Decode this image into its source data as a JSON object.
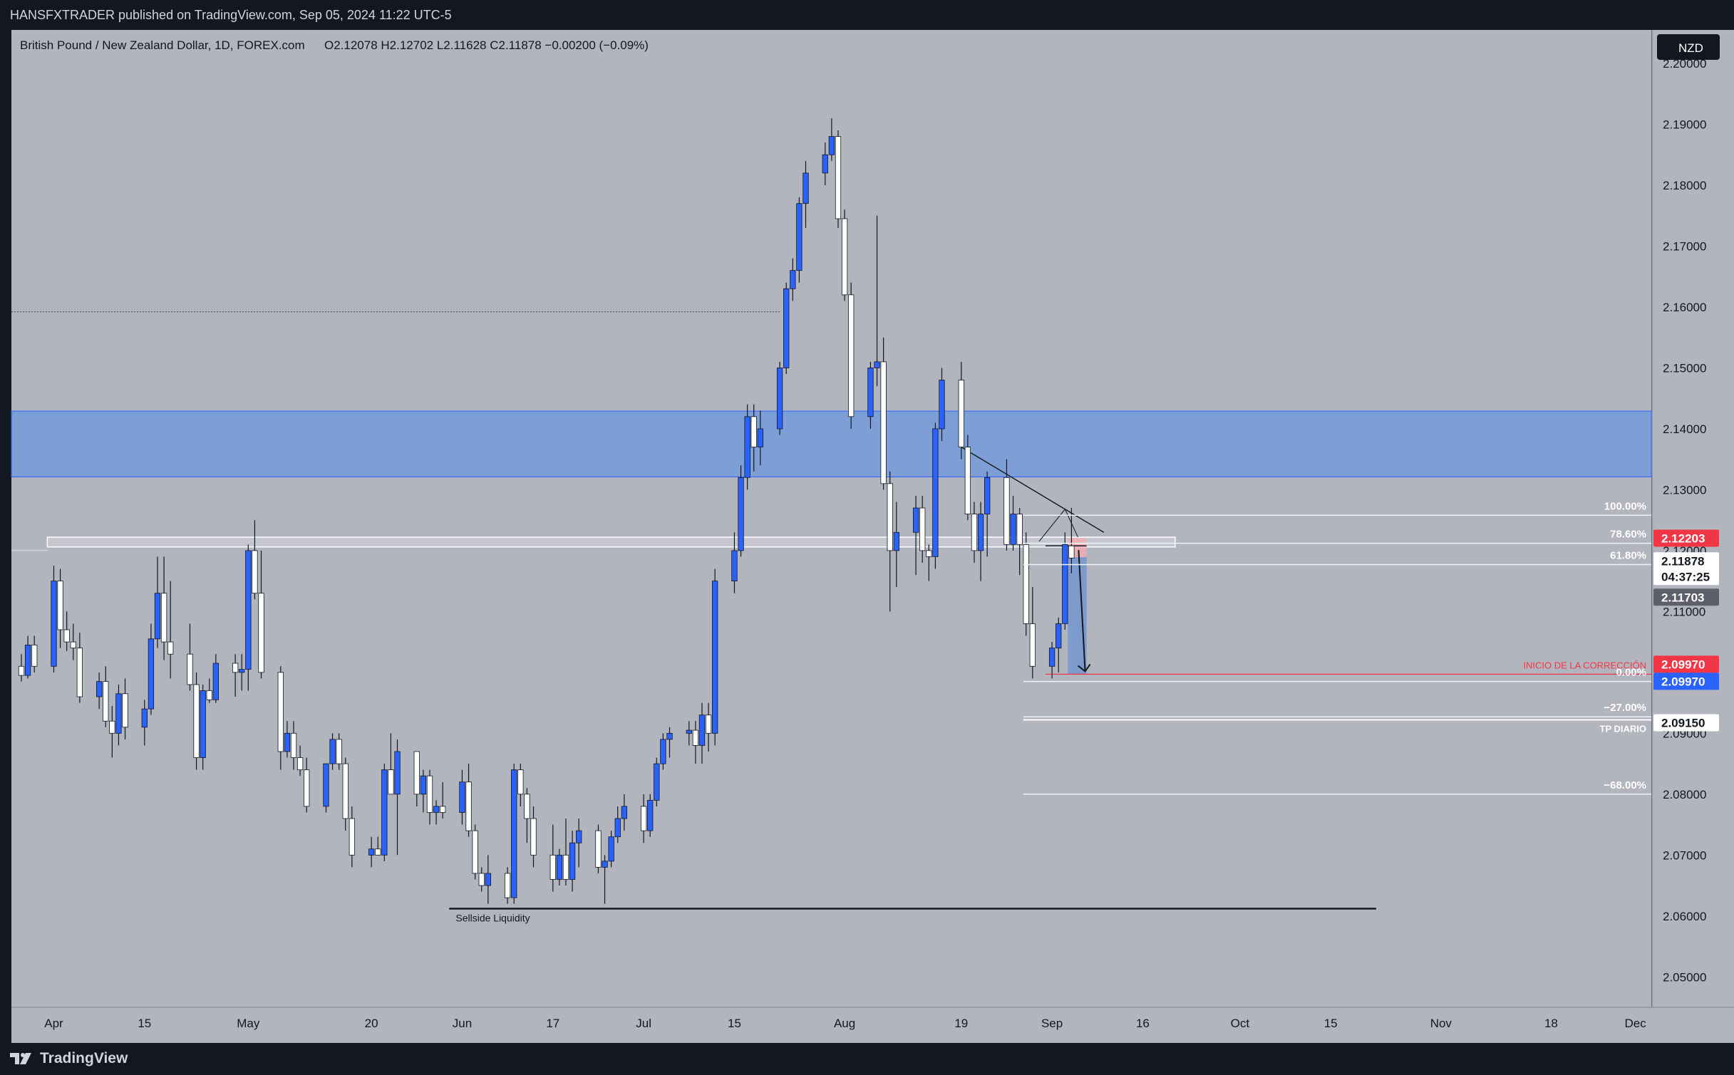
{
  "header": {
    "published": "HANSFXTRADER published on TradingView.com, Sep 05, 2024 11:22 UTC-5"
  },
  "legend": {
    "symbol": "British Pound / New Zealand Dollar, 1D, FOREX.com",
    "ohlc": "O2.12078  H2.12702  L2.11628  C2.11878  −0.00200 (−0.09%)"
  },
  "currency_button": "NZD",
  "footer": {
    "brand": "TradingView"
  },
  "colors": {
    "chart_bg": "#b2b5be",
    "bull_candle": "#2962ff",
    "bear_candle": "#ffffff",
    "zone_fill": "#7e9fd6",
    "sell_zone": "#f7a9b0",
    "target_zone": "#6f93cf",
    "label_red": "#f23645",
    "label_blue": "#2962ff",
    "label_gray": "#5d606b"
  },
  "chart_data": {
    "type": "candlestick",
    "title": "British Pound / New Zealand Dollar, 1D, FOREX.com",
    "ylim": [
      2.045,
      2.2055
    ],
    "y_ticks": [
      "2.20000",
      "2.19000",
      "2.18000",
      "2.17000",
      "2.16000",
      "2.15000",
      "2.14000",
      "2.13000",
      "2.12000",
      "2.11000",
      "2.10000",
      "2.09000",
      "2.08000",
      "2.07000",
      "2.06000",
      "2.05000"
    ],
    "x_tick_labels": [
      {
        "label": "Apr",
        "date": "2024-04-01"
      },
      {
        "label": "15",
        "date": "2024-04-15"
      },
      {
        "label": "May",
        "date": "2024-05-01"
      },
      {
        "label": "20",
        "date": "2024-05-20"
      },
      {
        "label": "Jun",
        "date": "2024-06-03"
      },
      {
        "label": "17",
        "date": "2024-06-17"
      },
      {
        "label": "Jul",
        "date": "2024-07-01"
      },
      {
        "label": "15",
        "date": "2024-07-15"
      },
      {
        "label": "Aug",
        "date": "2024-08-01"
      },
      {
        "label": "19",
        "date": "2024-08-19"
      },
      {
        "label": "Sep",
        "date": "2024-09-02"
      },
      {
        "label": "16",
        "date": "2024-09-16"
      },
      {
        "label": "Oct",
        "date": "2024-10-01"
      },
      {
        "label": "15",
        "date": "2024-10-15"
      },
      {
        "label": "Nov",
        "date": "2024-11-01"
      },
      {
        "label": "18",
        "date": "2024-11-18"
      },
      {
        "label": "Dec",
        "date": "2024-12-01"
      }
    ],
    "candles": [
      [
        "2024-03-27",
        2.101,
        2.103,
        2.0985,
        2.0995
      ],
      [
        "2024-03-28",
        2.0995,
        2.106,
        2.099,
        2.1045
      ],
      [
        "2024-03-29",
        2.1045,
        2.106,
        2.1,
        2.101
      ],
      [
        "2024-04-01",
        2.101,
        2.1175,
        2.1,
        2.115
      ],
      [
        "2024-04-02",
        2.115,
        2.117,
        2.104,
        2.107
      ],
      [
        "2024-04-03",
        2.107,
        2.11,
        2.1035,
        2.105
      ],
      [
        "2024-04-04",
        2.105,
        2.108,
        2.102,
        2.104
      ],
      [
        "2024-04-05",
        2.104,
        2.1065,
        2.095,
        2.096
      ],
      [
        "2024-04-08",
        2.096,
        2.1,
        2.094,
        2.0985
      ],
      [
        "2024-04-09",
        2.0985,
        2.101,
        2.091,
        2.092
      ],
      [
        "2024-04-10",
        2.092,
        2.0945,
        2.086,
        2.09
      ],
      [
        "2024-04-11",
        2.09,
        2.098,
        2.088,
        2.0965
      ],
      [
        "2024-04-12",
        2.0965,
        2.099,
        2.089,
        2.091
      ],
      [
        "2024-04-15",
        2.091,
        2.0955,
        2.088,
        2.094
      ],
      [
        "2024-04-16",
        2.094,
        2.108,
        2.093,
        2.1055
      ],
      [
        "2024-04-17",
        2.1055,
        2.119,
        2.104,
        2.113
      ],
      [
        "2024-04-18",
        2.113,
        2.119,
        2.102,
        2.105
      ],
      [
        "2024-04-19",
        2.105,
        2.115,
        2.099,
        2.103
      ],
      [
        "2024-04-22",
        2.103,
        2.108,
        2.097,
        2.098
      ],
      [
        "2024-04-23",
        2.098,
        2.1,
        2.084,
        2.086
      ],
      [
        "2024-04-24",
        2.086,
        2.098,
        2.084,
        2.097
      ],
      [
        "2024-04-25",
        2.097,
        2.099,
        2.095,
        2.0955
      ],
      [
        "2024-04-26",
        2.0955,
        2.103,
        2.095,
        2.1015
      ],
      [
        "2024-04-29",
        2.1015,
        2.103,
        2.096,
        2.1
      ],
      [
        "2024-04-30",
        2.1,
        2.103,
        2.097,
        2.1005
      ],
      [
        "2024-05-01",
        2.1005,
        2.121,
        2.097,
        2.12
      ],
      [
        "2024-05-02",
        2.12,
        2.125,
        2.112,
        2.113
      ],
      [
        "2024-05-03",
        2.113,
        2.12,
        2.099,
        2.1
      ],
      [
        "2024-05-06",
        2.1,
        2.101,
        2.084,
        2.087
      ],
      [
        "2024-05-07",
        2.087,
        2.092,
        2.086,
        2.09
      ],
      [
        "2024-05-08",
        2.09,
        2.092,
        2.084,
        2.086
      ],
      [
        "2024-05-09",
        2.086,
        2.088,
        2.083,
        2.084
      ],
      [
        "2024-05-10",
        2.084,
        2.086,
        2.077,
        2.078
      ],
      [
        "2024-05-13",
        2.078,
        2.084,
        2.077,
        2.085
      ],
      [
        "2024-05-14",
        2.085,
        2.09,
        2.084,
        2.089
      ],
      [
        "2024-05-15",
        2.089,
        2.09,
        2.084,
        2.085
      ],
      [
        "2024-05-16",
        2.085,
        2.086,
        2.074,
        2.076
      ],
      [
        "2024-05-17",
        2.076,
        2.078,
        2.068,
        2.07
      ],
      [
        "2024-05-20",
        2.07,
        2.073,
        2.068,
        2.071
      ],
      [
        "2024-05-21",
        2.071,
        2.073,
        2.07,
        2.07
      ],
      [
        "2024-05-22",
        2.07,
        2.085,
        2.069,
        2.084
      ],
      [
        "2024-05-23",
        2.084,
        2.09,
        2.08,
        2.08
      ],
      [
        "2024-05-24",
        2.08,
        2.089,
        2.07,
        2.087
      ],
      [
        "2024-05-27",
        2.087,
        2.087,
        2.078,
        2.08
      ],
      [
        "2024-05-28",
        2.08,
        2.084,
        2.077,
        2.083
      ],
      [
        "2024-05-29",
        2.083,
        2.084,
        2.075,
        2.077
      ],
      [
        "2024-05-30",
        2.077,
        2.079,
        2.075,
        2.078
      ],
      [
        "2024-05-31",
        2.078,
        2.082,
        2.076,
        2.077
      ],
      [
        "2024-06-03",
        2.077,
        2.084,
        2.075,
        2.082
      ],
      [
        "2024-06-04",
        2.082,
        2.085,
        2.073,
        2.074
      ],
      [
        "2024-06-05",
        2.074,
        2.075,
        2.066,
        2.067
      ],
      [
        "2024-06-06",
        2.067,
        2.068,
        2.064,
        2.065
      ],
      [
        "2024-06-07",
        2.065,
        2.07,
        2.062,
        2.067
      ],
      [
        "2024-06-10",
        2.067,
        2.068,
        2.062,
        2.063
      ],
      [
        "2024-06-11",
        2.063,
        2.085,
        2.062,
        2.084
      ],
      [
        "2024-06-12",
        2.084,
        2.085,
        2.078,
        2.08
      ],
      [
        "2024-06-13",
        2.08,
        2.081,
        2.072,
        2.076
      ],
      [
        "2024-06-14",
        2.076,
        2.078,
        2.068,
        2.07
      ],
      [
        "2024-06-17",
        2.07,
        2.075,
        2.064,
        2.066
      ],
      [
        "2024-06-18",
        2.066,
        2.071,
        2.065,
        2.07
      ],
      [
        "2024-06-19",
        2.07,
        2.076,
        2.065,
        2.066
      ],
      [
        "2024-06-20",
        2.066,
        2.074,
        2.064,
        2.072
      ],
      [
        "2024-06-21",
        2.072,
        2.076,
        2.068,
        2.074
      ],
      [
        "2024-06-24",
        2.074,
        2.075,
        2.067,
        2.068
      ],
      [
        "2024-06-25",
        2.068,
        2.07,
        2.062,
        2.069
      ],
      [
        "2024-06-26",
        2.069,
        2.074,
        2.068,
        2.073
      ],
      [
        "2024-06-27",
        2.073,
        2.078,
        2.072,
        2.076
      ],
      [
        "2024-06-28",
        2.076,
        2.08,
        2.074,
        2.078
      ],
      [
        "2024-07-01",
        2.078,
        2.08,
        2.072,
        2.074
      ],
      [
        "2024-07-02",
        2.074,
        2.08,
        2.073,
        2.079
      ],
      [
        "2024-07-03",
        2.079,
        2.086,
        2.078,
        2.085
      ],
      [
        "2024-07-04",
        2.085,
        2.09,
        2.084,
        2.089
      ],
      [
        "2024-07-05",
        2.089,
        2.091,
        2.086,
        2.09
      ],
      [
        "2024-07-08",
        2.09,
        2.092,
        2.088,
        2.0905
      ],
      [
        "2024-07-09",
        2.0905,
        2.092,
        2.085,
        2.088
      ],
      [
        "2024-07-10",
        2.088,
        2.095,
        2.085,
        2.093
      ],
      [
        "2024-07-11",
        2.093,
        2.095,
        2.087,
        2.09
      ],
      [
        "2024-07-12",
        2.09,
        2.117,
        2.088,
        2.115
      ],
      [
        "2024-07-15",
        2.115,
        2.123,
        2.113,
        2.12
      ],
      [
        "2024-07-16",
        2.12,
        2.134,
        2.119,
        2.132
      ],
      [
        "2024-07-17",
        2.132,
        2.144,
        2.13,
        2.142
      ],
      [
        "2024-07-18",
        2.142,
        2.144,
        2.133,
        2.137
      ],
      [
        "2024-07-19",
        2.137,
        2.143,
        2.134,
        2.14
      ],
      [
        "2024-07-22",
        2.14,
        2.151,
        2.139,
        2.15
      ],
      [
        "2024-07-23",
        2.15,
        2.164,
        2.149,
        2.163
      ],
      [
        "2024-07-24",
        2.163,
        2.168,
        2.161,
        2.166
      ],
      [
        "2024-07-25",
        2.166,
        2.178,
        2.164,
        2.177
      ],
      [
        "2024-07-26",
        2.177,
        2.184,
        2.173,
        2.182
      ],
      [
        "2024-07-29",
        2.182,
        2.187,
        2.18,
        2.185
      ],
      [
        "2024-07-30",
        2.185,
        2.191,
        2.184,
        2.188
      ],
      [
        "2024-07-31",
        2.188,
        2.189,
        2.173,
        2.1745
      ],
      [
        "2024-08-01",
        2.1745,
        2.176,
        2.161,
        2.162
      ],
      [
        "2024-08-02",
        2.162,
        2.164,
        2.14,
        2.142
      ],
      [
        "2024-08-05",
        2.142,
        2.151,
        2.14,
        2.15
      ],
      [
        "2024-08-06",
        2.15,
        2.175,
        2.147,
        2.151
      ],
      [
        "2024-08-07",
        2.151,
        2.155,
        2.13,
        2.131
      ],
      [
        "2024-08-08",
        2.131,
        2.133,
        2.11,
        2.12
      ],
      [
        "2024-08-09",
        2.12,
        2.128,
        2.114,
        2.123
      ],
      [
        "2024-08-12",
        2.123,
        2.129,
        2.116,
        2.127
      ],
      [
        "2024-08-13",
        2.127,
        2.129,
        2.118,
        2.12
      ],
      [
        "2024-08-14",
        2.12,
        2.121,
        2.115,
        2.119
      ],
      [
        "2024-08-15",
        2.119,
        2.141,
        2.117,
        2.14
      ],
      [
        "2024-08-16",
        2.14,
        2.15,
        2.138,
        2.148
      ],
      [
        "2024-08-19",
        2.148,
        2.151,
        2.135,
        2.137
      ],
      [
        "2024-08-20",
        2.137,
        2.139,
        2.125,
        2.126
      ],
      [
        "2024-08-21",
        2.126,
        2.128,
        2.118,
        2.12
      ],
      [
        "2024-08-22",
        2.12,
        2.128,
        2.115,
        2.126
      ],
      [
        "2024-08-23",
        2.126,
        2.133,
        2.119,
        2.132
      ],
      [
        "2024-08-26",
        2.132,
        2.135,
        2.12,
        2.121
      ],
      [
        "2024-08-27",
        2.121,
        2.129,
        2.12,
        2.126
      ],
      [
        "2024-08-28",
        2.126,
        2.127,
        2.116,
        2.121
      ],
      [
        "2024-08-29",
        2.121,
        2.123,
        2.106,
        2.108
      ],
      [
        "2024-08-30",
        2.108,
        2.114,
        2.099,
        2.101
      ],
      [
        "2024-09-02",
        2.101,
        2.105,
        2.099,
        2.104
      ],
      [
        "2024-09-03",
        2.104,
        2.109,
        2.1,
        2.108
      ],
      [
        "2024-09-04",
        2.108,
        2.123,
        2.107,
        2.121
      ],
      [
        "2024-09-05",
        2.12078,
        2.12702,
        2.11628,
        2.11878
      ]
    ],
    "zones": {
      "supply_zone": [
        2.1321,
        2.1429
      ],
      "resistance_band": [
        2.1206,
        2.1222
      ],
      "sell_position": {
        "entry": 2.12078,
        "stop": 2.12203,
        "target": 2.0997
      }
    },
    "lines": {
      "dotted_level": 2.1592,
      "sellside_liquidity": 2.0612,
      "trendline": [
        [
          "2024-08-19",
          2.137
        ],
        [
          "2024-09-04",
          2.1268
        ],
        [
          "2024-09-10",
          2.123
        ]
      ]
    },
    "fib_levels": [
      {
        "label": "100.00%",
        "price": 2.1258
      },
      {
        "label": "78.60%",
        "price": 2.1212
      },
      {
        "label": "61.80%",
        "price": 2.1177
      },
      {
        "label": "0.00%",
        "price": 2.0985
      },
      {
        "label": "−27.00%",
        "price": 2.0927
      },
      {
        "label": "−68.00%",
        "price": 2.08
      }
    ],
    "annotations": {
      "correction": "INICIO DE LA CORRECCIÓN",
      "tp": "TP DIARIO",
      "liquidity": "Sellside Liquidity"
    },
    "price_labels": [
      {
        "text": "2.12203",
        "price": 2.12203,
        "color": "#f23645"
      },
      {
        "text": "2.11878",
        "price": 2.11878,
        "color": "#ffffff"
      },
      {
        "text": "04:37:25",
        "price": 2.11878,
        "color": "#ffffff"
      },
      {
        "text": "2.11703",
        "price": 2.11703,
        "color": "#5d606b"
      },
      {
        "text": "2.09970",
        "price": 2.0997,
        "color": "#f23645"
      },
      {
        "text": "2.09970",
        "price": 2.0997,
        "color": "#2962ff"
      },
      {
        "text": "2.09150",
        "price": 2.0915,
        "color": "#ffffff"
      }
    ]
  }
}
